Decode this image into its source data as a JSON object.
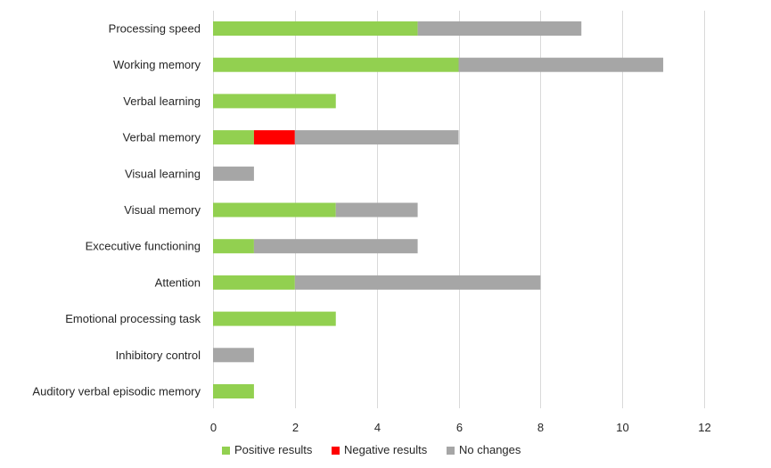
{
  "chart_data": {
    "type": "bar",
    "orientation": "horizontal",
    "stacked": true,
    "categories": [
      "Processing speed",
      "Working memory",
      "Verbal learning",
      "Verbal memory",
      "Visual learning",
      "Visual memory",
      "Excecutive functioning",
      "Attention",
      "Emotional processing task",
      "Inhibitory control",
      "Auditory verbal episodic memory"
    ],
    "series": [
      {
        "name": "Positive results",
        "color": "#92d050",
        "values": [
          5,
          6,
          3,
          1,
          0,
          3,
          1,
          2,
          3,
          0,
          1
        ]
      },
      {
        "name": "Negative results",
        "color": "#ff0000",
        "values": [
          0,
          0,
          0,
          1,
          0,
          0,
          0,
          0,
          0,
          0,
          0
        ]
      },
      {
        "name": "No changes",
        "color": "#a6a6a6",
        "values": [
          4,
          5,
          0,
          4,
          1,
          2,
          4,
          6,
          0,
          1,
          0
        ]
      }
    ],
    "xlim": [
      0,
      12
    ],
    "xticks": [
      "0",
      "2",
      "4",
      "6",
      "8",
      "10",
      "12"
    ],
    "grid": true,
    "legend_position": "bottom",
    "title": "",
    "xlabel": "",
    "ylabel": ""
  }
}
